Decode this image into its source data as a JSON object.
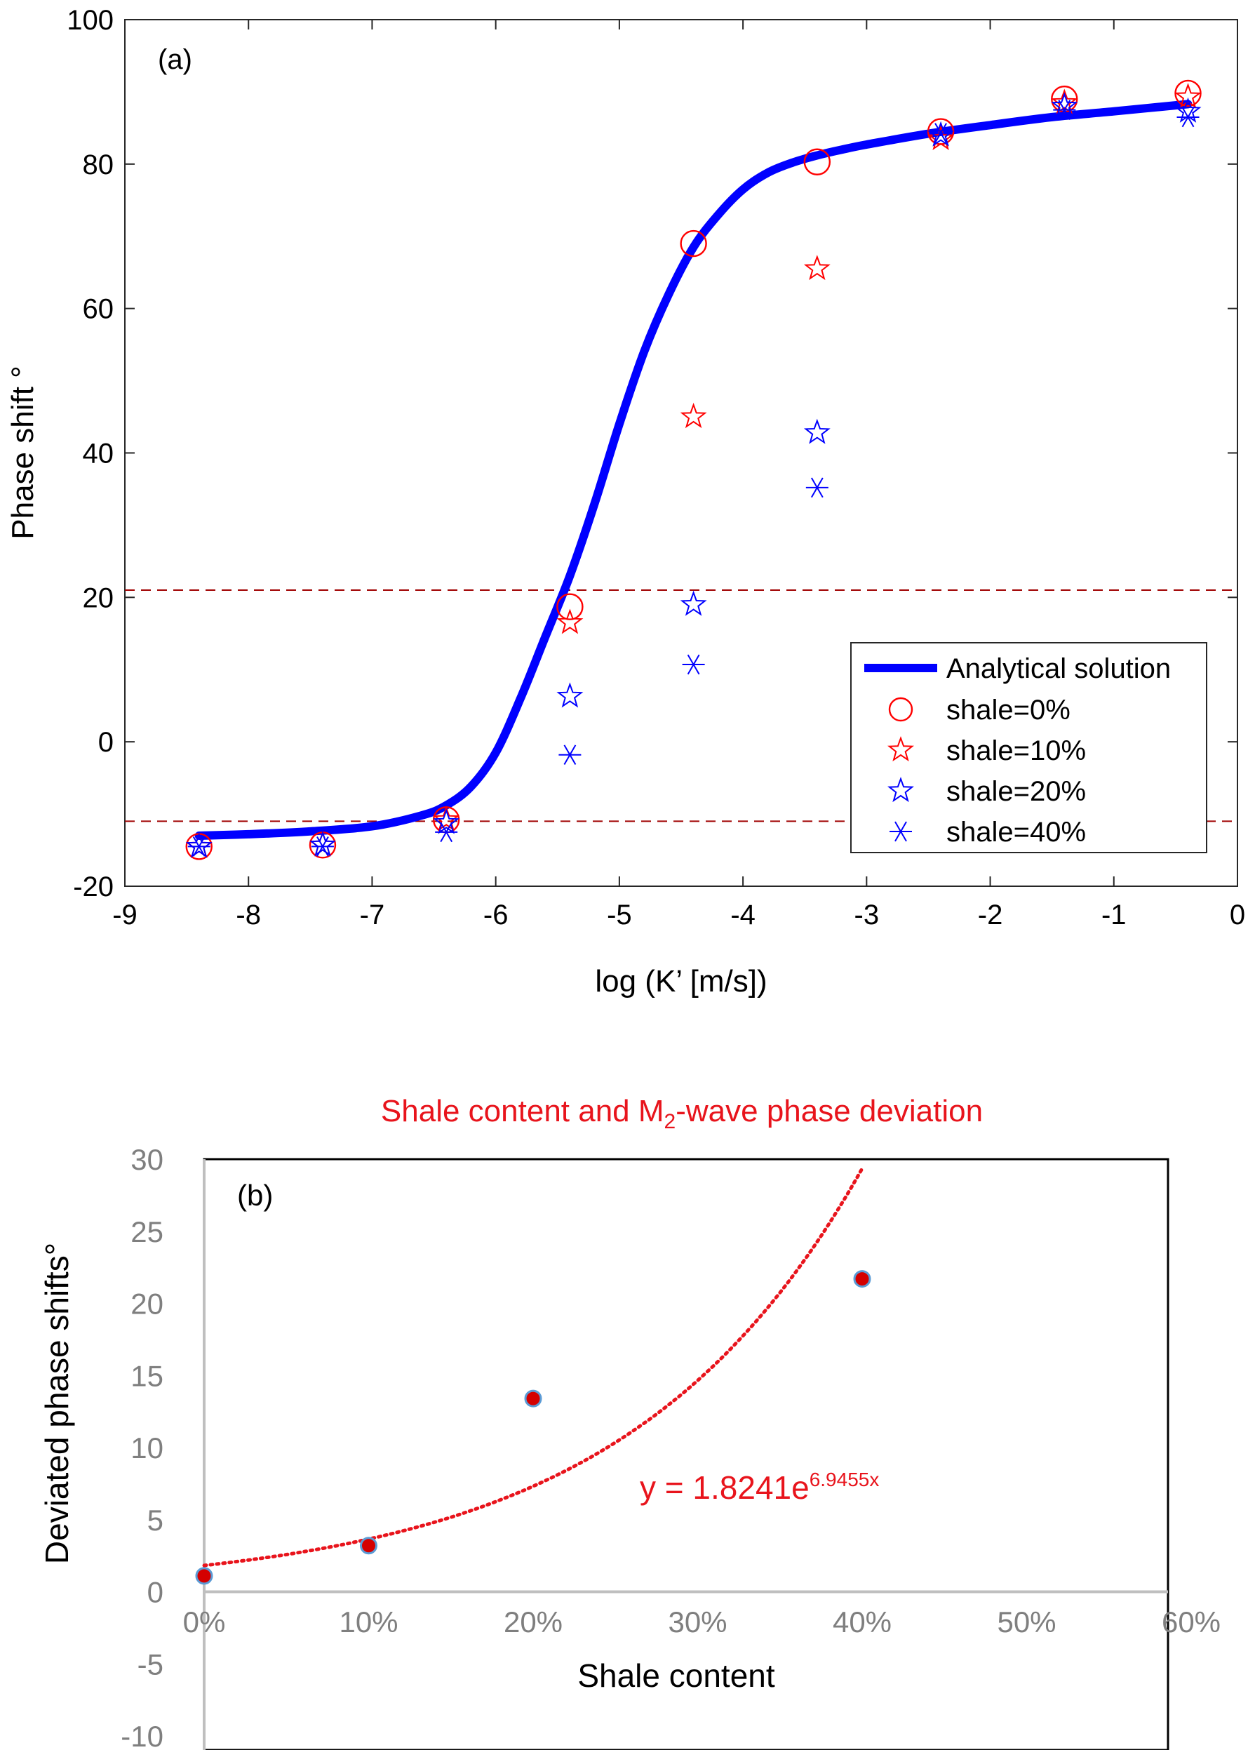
{
  "colors": {
    "curve": "#0000ff",
    "red": "#ff0000",
    "blue": "#0000ff",
    "dashed": "#a00000",
    "b_title": "#e8141c",
    "b_fill": "#d40000",
    "b_edge": "#5b9bd5",
    "b_trend": "#e8141c",
    "b_axis_text": "#7f7f7f",
    "b_axis_line": "#bfbfbf"
  },
  "chart_data": [
    {
      "type": "line+scatter",
      "panel_label": "(a)",
      "title": "",
      "xlabel": "log (K’ [m/s])",
      "ylabel": "Phase shift °",
      "xlim": [
        -9,
        0
      ],
      "ylim": [
        -20,
        100
      ],
      "x_ticks": [
        -9,
        -8,
        -7,
        -6,
        -5,
        -4,
        -3,
        -2,
        -1,
        0
      ],
      "x_tick_labels": [
        "-9",
        "-8",
        "-7",
        "-6",
        "-5",
        "-4",
        "-3",
        "-2",
        "-1",
        "0"
      ],
      "y_ticks": [
        -20,
        0,
        20,
        40,
        60,
        80,
        100
      ],
      "y_tick_labels": [
        "-20",
        "0",
        "20",
        "40",
        "60",
        "80",
        "100"
      ],
      "reference_lines_y": [
        21,
        -11
      ],
      "curve": {
        "name": "Analytical solution",
        "x": [
          -8.4,
          -8.0,
          -7.5,
          -7.0,
          -6.6,
          -6.4,
          -6.2,
          -6.0,
          -5.8,
          -5.6,
          -5.4,
          -5.2,
          -5.0,
          -4.8,
          -4.6,
          -4.4,
          -4.2,
          -4.0,
          -3.8,
          -3.6,
          -3.4,
          -3.2,
          -3.0,
          -2.5,
          -2.0,
          -1.5,
          -1.0,
          -0.4
        ],
        "y": [
          -13,
          -12.8,
          -12.4,
          -11.7,
          -10.2,
          -8.8,
          -6.2,
          -1.5,
          6,
          14.5,
          23,
          33,
          44,
          54,
          62,
          68.5,
          73,
          76.5,
          78.8,
          80.2,
          81.2,
          82,
          82.7,
          84.2,
          85.4,
          86.5,
          87.3,
          88.3
        ]
      },
      "series": [
        {
          "name": "shale=0%",
          "marker": "circle",
          "color": "red",
          "x": [
            -8.4,
            -7.4,
            -6.4,
            -5.4,
            -4.4,
            -3.4,
            -2.4,
            -1.4,
            -0.4
          ],
          "y": [
            -14.5,
            -14.3,
            -10.8,
            18.7,
            69,
            80.3,
            84.5,
            89,
            89.8
          ]
        },
        {
          "name": "shale=10%",
          "marker": "star",
          "color": "red",
          "x": [
            -8.4,
            -7.4,
            -6.4,
            -5.4,
            -4.4,
            -3.4,
            -2.4,
            -1.4,
            -0.4
          ],
          "y": [
            -14.5,
            -14.3,
            -10.8,
            16.5,
            45,
            65.5,
            83.5,
            88.5,
            89.3
          ]
        },
        {
          "name": "shale=20%",
          "marker": "star",
          "color": "blue",
          "x": [
            -8.4,
            -7.4,
            -6.4,
            -5.4,
            -4.4,
            -3.4,
            -2.4,
            -1.4,
            -0.4
          ],
          "y": [
            -14.5,
            -14.3,
            -11.2,
            6.3,
            19,
            42.8,
            84,
            88,
            87.3
          ]
        },
        {
          "name": "shale=40%",
          "marker": "asterisk",
          "color": "blue",
          "x": [
            -8.4,
            -7.4,
            -6.4,
            -5.4,
            -4.4,
            -3.4,
            -2.4,
            -1.4,
            -0.4
          ],
          "y": [
            -14.5,
            -14.5,
            -12.5,
            -1.8,
            10.7,
            35.2,
            84.3,
            87.5,
            86.5
          ]
        }
      ],
      "legend": {
        "placement": "lower-right",
        "entries": [
          "Analytical solution",
          "shale=0%",
          "shale=10%",
          "shale=20%",
          "shale=40%"
        ]
      }
    },
    {
      "type": "scatter",
      "panel_label": "(b)",
      "title_pre": "Shale content and M",
      "title_sub": "2",
      "title_post": "-wave phase deviation",
      "xlabel": "Shale content",
      "ylabel": "Deviated phase shifts°",
      "xlim": [
        0,
        0.6
      ],
      "ylim": [
        -10,
        30
      ],
      "x_ticks": [
        0,
        0.1,
        0.2,
        0.3,
        0.4,
        0.5,
        0.6
      ],
      "x_tick_labels": [
        "0%",
        "10%",
        "20%",
        "30%",
        "40%",
        "50%",
        "60%"
      ],
      "y_ticks": [
        -10,
        -5,
        0,
        5,
        10,
        15,
        20,
        25,
        30
      ],
      "y_tick_labels": [
        "-10",
        "-5",
        "0",
        "5",
        "10",
        "15",
        "20",
        "25",
        "30"
      ],
      "points": {
        "x": [
          0,
          0.1,
          0.2,
          0.4
        ],
        "y": [
          1.1,
          3.2,
          13.4,
          21.7
        ]
      },
      "trendline": {
        "type": "exponential",
        "a": 1.8241,
        "b": 6.9455,
        "x_range": [
          0,
          0.4
        ],
        "label_main": "y = 1.8241e",
        "label_exp": "6.9455x"
      },
      "grid": false
    }
  ]
}
